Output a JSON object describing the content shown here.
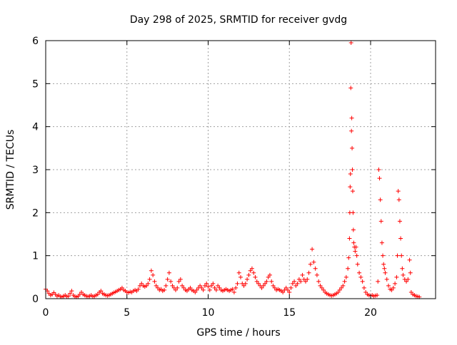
{
  "chart_data": {
    "type": "scatter",
    "title": "Day 298 of 2025, SRMTID for receiver gvdg",
    "xlabel": "GPS time / hours",
    "ylabel": "SRMTID / TECUs",
    "xlim": [
      0,
      24
    ],
    "ylim": [
      0,
      6
    ],
    "xticks": [
      0,
      5,
      10,
      15,
      20
    ],
    "yticks": [
      0,
      1,
      2,
      3,
      4,
      5,
      6
    ],
    "grid": true,
    "marker": "+",
    "color": "#ff0000",
    "series": [
      {
        "name": "SRMTID",
        "points": [
          [
            0.0,
            0.22
          ],
          [
            0.1,
            0.18
          ],
          [
            0.2,
            0.12
          ],
          [
            0.3,
            0.08
          ],
          [
            0.4,
            0.1
          ],
          [
            0.5,
            0.14
          ],
          [
            0.6,
            0.1
          ],
          [
            0.7,
            0.06
          ],
          [
            0.8,
            0.08
          ],
          [
            0.9,
            0.05
          ],
          [
            1.0,
            0.04
          ],
          [
            1.1,
            0.06
          ],
          [
            1.2,
            0.08
          ],
          [
            1.3,
            0.05
          ],
          [
            1.4,
            0.06
          ],
          [
            1.5,
            0.12
          ],
          [
            1.6,
            0.18
          ],
          [
            1.7,
            0.08
          ],
          [
            1.8,
            0.05
          ],
          [
            1.9,
            0.04
          ],
          [
            2.0,
            0.06
          ],
          [
            2.1,
            0.1
          ],
          [
            2.2,
            0.15
          ],
          [
            2.3,
            0.1
          ],
          [
            2.4,
            0.08
          ],
          [
            2.5,
            0.06
          ],
          [
            2.6,
            0.05
          ],
          [
            2.7,
            0.06
          ],
          [
            2.8,
            0.08
          ],
          [
            2.9,
            0.05
          ],
          [
            3.0,
            0.06
          ],
          [
            3.1,
            0.08
          ],
          [
            3.2,
            0.1
          ],
          [
            3.3,
            0.15
          ],
          [
            3.4,
            0.18
          ],
          [
            3.5,
            0.12
          ],
          [
            3.6,
            0.1
          ],
          [
            3.7,
            0.08
          ],
          [
            3.8,
            0.07
          ],
          [
            3.9,
            0.08
          ],
          [
            4.0,
            0.1
          ],
          [
            4.1,
            0.12
          ],
          [
            4.2,
            0.14
          ],
          [
            4.3,
            0.16
          ],
          [
            4.4,
            0.18
          ],
          [
            4.5,
            0.2
          ],
          [
            4.6,
            0.22
          ],
          [
            4.7,
            0.25
          ],
          [
            4.8,
            0.2
          ],
          [
            4.9,
            0.18
          ],
          [
            5.0,
            0.15
          ],
          [
            5.1,
            0.14
          ],
          [
            5.2,
            0.16
          ],
          [
            5.3,
            0.15
          ],
          [
            5.4,
            0.18
          ],
          [
            5.5,
            0.2
          ],
          [
            5.6,
            0.18
          ],
          [
            5.7,
            0.22
          ],
          [
            5.8,
            0.3
          ],
          [
            5.9,
            0.35
          ],
          [
            6.0,
            0.3
          ],
          [
            6.1,
            0.28
          ],
          [
            6.2,
            0.3
          ],
          [
            6.3,
            0.35
          ],
          [
            6.4,
            0.45
          ],
          [
            6.5,
            0.65
          ],
          [
            6.6,
            0.55
          ],
          [
            6.7,
            0.4
          ],
          [
            6.8,
            0.3
          ],
          [
            6.9,
            0.25
          ],
          [
            7.0,
            0.2
          ],
          [
            7.1,
            0.22
          ],
          [
            7.2,
            0.18
          ],
          [
            7.3,
            0.2
          ],
          [
            7.4,
            0.3
          ],
          [
            7.5,
            0.45
          ],
          [
            7.6,
            0.6
          ],
          [
            7.7,
            0.4
          ],
          [
            7.8,
            0.3
          ],
          [
            7.9,
            0.25
          ],
          [
            8.0,
            0.2
          ],
          [
            8.1,
            0.25
          ],
          [
            8.2,
            0.4
          ],
          [
            8.3,
            0.45
          ],
          [
            8.4,
            0.3
          ],
          [
            8.5,
            0.25
          ],
          [
            8.6,
            0.2
          ],
          [
            8.7,
            0.18
          ],
          [
            8.8,
            0.22
          ],
          [
            8.9,
            0.25
          ],
          [
            9.0,
            0.2
          ],
          [
            9.1,
            0.18
          ],
          [
            9.2,
            0.15
          ],
          [
            9.3,
            0.2
          ],
          [
            9.4,
            0.25
          ],
          [
            9.5,
            0.3
          ],
          [
            9.6,
            0.25
          ],
          [
            9.7,
            0.2
          ],
          [
            9.8,
            0.3
          ],
          [
            9.9,
            0.35
          ],
          [
            10.0,
            0.28
          ],
          [
            10.1,
            0.2
          ],
          [
            10.2,
            0.3
          ],
          [
            10.3,
            0.35
          ],
          [
            10.4,
            0.25
          ],
          [
            10.5,
            0.2
          ],
          [
            10.6,
            0.3
          ],
          [
            10.7,
            0.25
          ],
          [
            10.8,
            0.2
          ],
          [
            10.9,
            0.18
          ],
          [
            11.0,
            0.2
          ],
          [
            11.1,
            0.22
          ],
          [
            11.2,
            0.2
          ],
          [
            11.3,
            0.18
          ],
          [
            11.4,
            0.2
          ],
          [
            11.5,
            0.22
          ],
          [
            11.6,
            0.15
          ],
          [
            11.7,
            0.25
          ],
          [
            11.8,
            0.35
          ],
          [
            11.9,
            0.6
          ],
          [
            12.0,
            0.5
          ],
          [
            12.1,
            0.35
          ],
          [
            12.2,
            0.3
          ],
          [
            12.3,
            0.35
          ],
          [
            12.4,
            0.45
          ],
          [
            12.5,
            0.55
          ],
          [
            12.6,
            0.65
          ],
          [
            12.7,
            0.7
          ],
          [
            12.8,
            0.6
          ],
          [
            12.9,
            0.5
          ],
          [
            13.0,
            0.4
          ],
          [
            13.1,
            0.35
          ],
          [
            13.2,
            0.3
          ],
          [
            13.3,
            0.25
          ],
          [
            13.4,
            0.3
          ],
          [
            13.5,
            0.35
          ],
          [
            13.6,
            0.4
          ],
          [
            13.7,
            0.5
          ],
          [
            13.8,
            0.55
          ],
          [
            13.9,
            0.4
          ],
          [
            14.0,
            0.3
          ],
          [
            14.1,
            0.25
          ],
          [
            14.2,
            0.2
          ],
          [
            14.3,
            0.22
          ],
          [
            14.4,
            0.2
          ],
          [
            14.5,
            0.18
          ],
          [
            14.6,
            0.15
          ],
          [
            14.7,
            0.2
          ],
          [
            14.8,
            0.25
          ],
          [
            14.9,
            0.2
          ],
          [
            15.0,
            0.15
          ],
          [
            15.1,
            0.25
          ],
          [
            15.2,
            0.35
          ],
          [
            15.3,
            0.4
          ],
          [
            15.4,
            0.3
          ],
          [
            15.5,
            0.35
          ],
          [
            15.6,
            0.45
          ],
          [
            15.7,
            0.4
          ],
          [
            15.8,
            0.55
          ],
          [
            15.9,
            0.45
          ],
          [
            16.0,
            0.4
          ],
          [
            16.1,
            0.45
          ],
          [
            16.2,
            0.6
          ],
          [
            16.3,
            0.8
          ],
          [
            16.4,
            1.15
          ],
          [
            16.5,
            0.85
          ],
          [
            16.6,
            0.7
          ],
          [
            16.7,
            0.55
          ],
          [
            16.8,
            0.4
          ],
          [
            16.9,
            0.3
          ],
          [
            17.0,
            0.25
          ],
          [
            17.1,
            0.2
          ],
          [
            17.2,
            0.15
          ],
          [
            17.3,
            0.12
          ],
          [
            17.4,
            0.1
          ],
          [
            17.5,
            0.08
          ],
          [
            17.6,
            0.07
          ],
          [
            17.7,
            0.08
          ],
          [
            17.8,
            0.1
          ],
          [
            17.9,
            0.12
          ],
          [
            18.0,
            0.15
          ],
          [
            18.1,
            0.2
          ],
          [
            18.2,
            0.25
          ],
          [
            18.3,
            0.3
          ],
          [
            18.4,
            0.4
          ],
          [
            18.5,
            0.5
          ],
          [
            18.6,
            0.7
          ],
          [
            18.65,
            0.95
          ],
          [
            18.7,
            1.4
          ],
          [
            18.72,
            2.0
          ],
          [
            18.74,
            2.6
          ],
          [
            18.76,
            2.9
          ],
          [
            18.78,
            4.9
          ],
          [
            18.8,
            5.95
          ],
          [
            18.82,
            3.9
          ],
          [
            18.84,
            4.2
          ],
          [
            18.86,
            3.5
          ],
          [
            18.88,
            3.0
          ],
          [
            18.9,
            2.5
          ],
          [
            18.92,
            2.0
          ],
          [
            18.94,
            1.6
          ],
          [
            18.96,
            1.3
          ],
          [
            19.0,
            1.2
          ],
          [
            19.05,
            1.1
          ],
          [
            19.1,
            1.2
          ],
          [
            19.15,
            1.0
          ],
          [
            19.2,
            0.8
          ],
          [
            19.3,
            0.6
          ],
          [
            19.4,
            0.5
          ],
          [
            19.5,
            0.4
          ],
          [
            19.6,
            0.25
          ],
          [
            19.7,
            0.15
          ],
          [
            19.8,
            0.1
          ],
          [
            19.9,
            0.08
          ],
          [
            20.0,
            0.07
          ],
          [
            20.1,
            0.08
          ],
          [
            20.2,
            0.06
          ],
          [
            20.3,
            0.07
          ],
          [
            20.4,
            0.08
          ],
          [
            20.45,
            0.4
          ],
          [
            20.5,
            3.0
          ],
          [
            20.55,
            2.8
          ],
          [
            20.6,
            2.3
          ],
          [
            20.65,
            1.8
          ],
          [
            20.7,
            1.3
          ],
          [
            20.75,
            1.0
          ],
          [
            20.8,
            0.8
          ],
          [
            20.85,
            0.7
          ],
          [
            20.9,
            0.6
          ],
          [
            21.0,
            0.45
          ],
          [
            21.1,
            0.3
          ],
          [
            21.2,
            0.22
          ],
          [
            21.3,
            0.2
          ],
          [
            21.4,
            0.25
          ],
          [
            21.5,
            0.35
          ],
          [
            21.6,
            0.5
          ],
          [
            21.65,
            1.0
          ],
          [
            21.7,
            2.5
          ],
          [
            21.75,
            2.3
          ],
          [
            21.8,
            1.8
          ],
          [
            21.85,
            1.4
          ],
          [
            21.9,
            1.0
          ],
          [
            21.95,
            0.7
          ],
          [
            22.0,
            0.55
          ],
          [
            22.1,
            0.45
          ],
          [
            22.2,
            0.4
          ],
          [
            22.3,
            0.45
          ],
          [
            22.4,
            0.9
          ],
          [
            22.45,
            0.6
          ],
          [
            22.5,
            0.15
          ],
          [
            22.6,
            0.1
          ],
          [
            22.7,
            0.08
          ],
          [
            22.8,
            0.06
          ],
          [
            22.9,
            0.05
          ],
          [
            23.0,
            0.04
          ]
        ]
      }
    ]
  }
}
